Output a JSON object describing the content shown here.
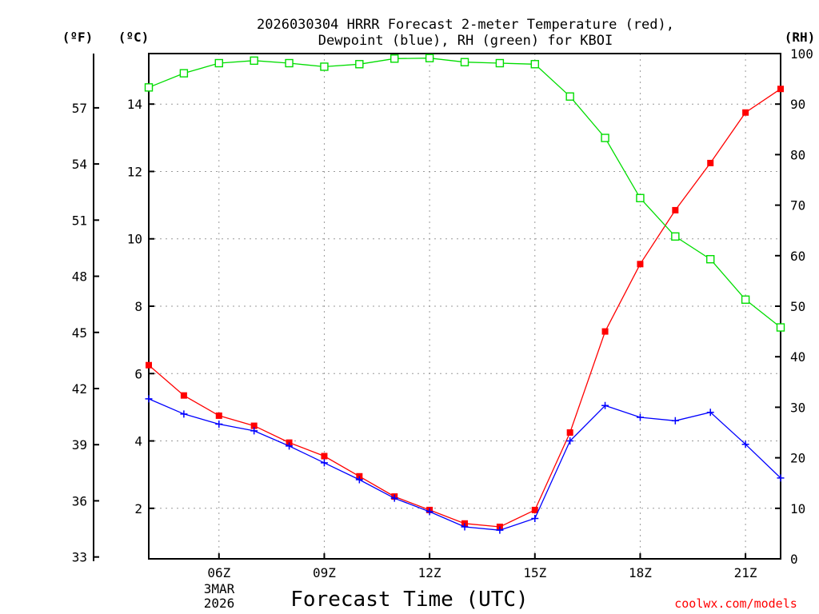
{
  "chart_data": {
    "type": "line",
    "title_lines": [
      "2026030304 HRRR Forecast 2-meter Temperature (red),",
      "Dewpoint (blue), RH (green) for KBOI"
    ],
    "unit_labels": {
      "fahrenheit": "(ºF)",
      "celsius": "(ºC)",
      "rh": "(RH)"
    },
    "xlabel": "Forecast Time (UTC)",
    "credit": "coolwx.com/models",
    "x_range_hours": [
      4,
      22
    ],
    "x_ticks": [
      {
        "hour": 6,
        "label": "06Z"
      },
      {
        "hour": 9,
        "label": "09Z"
      },
      {
        "hour": 12,
        "label": "12Z"
      },
      {
        "hour": 15,
        "label": "15Z"
      },
      {
        "hour": 18,
        "label": "18Z"
      },
      {
        "hour": 21,
        "label": "21Z"
      }
    ],
    "date_label": [
      "3MAR",
      "2026"
    ],
    "celsius_axis": {
      "min": 0.5,
      "max": 15.5,
      "ticks": [
        2,
        4,
        6,
        8,
        10,
        12,
        14
      ]
    },
    "fahrenheit_ticks": [
      33,
      36,
      39,
      42,
      45,
      48,
      51,
      54,
      57
    ],
    "rh_axis": {
      "min": 0,
      "max": 100,
      "ticks": [
        0,
        10,
        20,
        30,
        40,
        50,
        60,
        70,
        80,
        90,
        100
      ]
    },
    "hours": [
      4,
      5,
      6,
      7,
      8,
      9,
      10,
      11,
      12,
      13,
      14,
      15,
      16,
      17,
      18,
      19,
      20,
      21,
      22
    ],
    "series": [
      {
        "name": "Temperature",
        "axis": "celsius",
        "color": "#ff0000",
        "marker": "filled-square",
        "values": [
          6.25,
          5.35,
          4.75,
          4.45,
          3.95,
          3.55,
          2.95,
          2.35,
          1.95,
          1.55,
          1.45,
          1.95,
          4.25,
          7.25,
          9.25,
          10.85,
          12.25,
          13.75,
          14.45
        ]
      },
      {
        "name": "Dewpoint",
        "axis": "celsius",
        "color": "#0000ff",
        "marker": "plus",
        "values": [
          5.25,
          4.8,
          4.5,
          4.3,
          3.85,
          3.35,
          2.85,
          2.3,
          1.9,
          1.45,
          1.35,
          1.7,
          4.0,
          5.05,
          4.7,
          4.6,
          4.85,
          3.9,
          2.9
        ]
      },
      {
        "name": "RH",
        "axis": "rh",
        "color": "#00dd00",
        "marker": "open-square",
        "values": [
          93.3,
          96.1,
          98.1,
          98.6,
          98.1,
          97.4,
          97.9,
          99.0,
          99.1,
          98.3,
          98.1,
          97.9,
          91.5,
          83.3,
          71.4,
          63.8,
          59.3,
          51.3,
          45.8
        ]
      }
    ]
  }
}
